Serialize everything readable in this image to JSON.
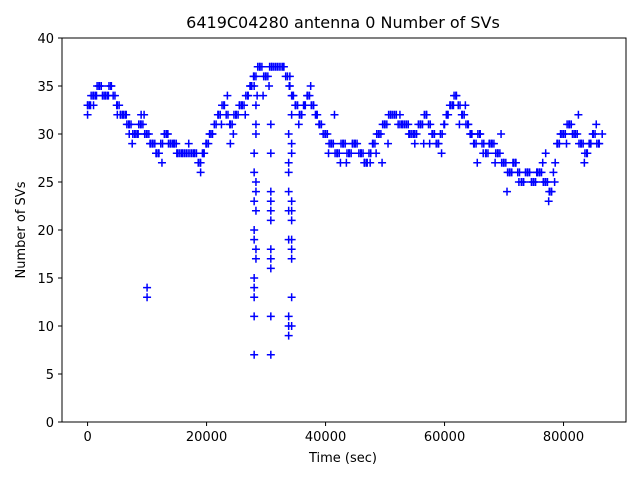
{
  "chart_data": {
    "type": "scatter",
    "title": "6419C04280 antenna 0 Number of SVs",
    "xlabel": "Time (sec)",
    "ylabel": "Number of SVs",
    "xlim": [
      -4300,
      90500
    ],
    "ylim": [
      0,
      40
    ],
    "xticks": [
      0,
      20000,
      40000,
      60000,
      80000
    ],
    "yticks": [
      0,
      5,
      10,
      15,
      20,
      25,
      30,
      35,
      40
    ],
    "marker": "+",
    "color": "#0000ff",
    "grid": false,
    "segments": [
      [
        0,
        33
      ],
      [
        1000,
        34
      ],
      [
        2000,
        35
      ],
      [
        3000,
        34
      ],
      [
        4000,
        35
      ],
      [
        5000,
        33
      ],
      [
        6000,
        32
      ],
      [
        7000,
        31
      ],
      [
        8000,
        30
      ],
      [
        9000,
        31
      ],
      [
        10000,
        30
      ],
      [
        11000,
        29
      ],
      [
        12000,
        28
      ],
      [
        13000,
        30
      ],
      [
        14000,
        29
      ],
      [
        16000,
        28
      ],
      [
        18000,
        28
      ],
      [
        19000,
        27
      ],
      [
        20000,
        29
      ],
      [
        21000,
        30
      ],
      [
        22000,
        32
      ],
      [
        23000,
        33
      ],
      [
        24000,
        31
      ],
      [
        25000,
        32
      ],
      [
        26000,
        33
      ],
      [
        27000,
        34
      ],
      [
        28000,
        36
      ],
      [
        29000,
        37
      ],
      [
        30000,
        36
      ],
      [
        31000,
        37
      ],
      [
        33000,
        37
      ],
      [
        34000,
        35
      ],
      [
        35000,
        33
      ],
      [
        36000,
        32
      ],
      [
        37000,
        34
      ],
      [
        38000,
        33
      ],
      [
        39000,
        31
      ],
      [
        40000,
        30
      ],
      [
        41000,
        29
      ],
      [
        42000,
        28
      ],
      [
        43000,
        29
      ],
      [
        44000,
        28
      ],
      [
        45000,
        29
      ],
      [
        46000,
        28
      ],
      [
        47000,
        27
      ],
      [
        48000,
        29
      ],
      [
        49000,
        30
      ],
      [
        50000,
        31
      ],
      [
        51000,
        32
      ],
      [
        53000,
        31
      ],
      [
        55000,
        30
      ],
      [
        56000,
        31
      ],
      [
        57000,
        32
      ],
      [
        58000,
        30
      ],
      [
        59000,
        29
      ],
      [
        60000,
        31
      ],
      [
        61000,
        33
      ],
      [
        62000,
        34
      ],
      [
        63000,
        32
      ],
      [
        64000,
        31
      ],
      [
        65000,
        29
      ],
      [
        66000,
        30
      ],
      [
        67000,
        28
      ],
      [
        68000,
        29
      ],
      [
        69000,
        28
      ],
      [
        70000,
        27
      ],
      [
        71000,
        26
      ],
      [
        72000,
        27
      ],
      [
        73000,
        25
      ],
      [
        74000,
        26
      ],
      [
        75000,
        25
      ],
      [
        76000,
        26
      ],
      [
        77000,
        25
      ],
      [
        78000,
        24
      ],
      [
        79000,
        29
      ],
      [
        80000,
        30
      ],
      [
        81000,
        31
      ],
      [
        82000,
        30
      ],
      [
        83000,
        29
      ],
      [
        84000,
        28
      ],
      [
        85000,
        30
      ],
      [
        86000,
        29
      ]
    ],
    "spread": [
      [
        0,
        32
      ],
      [
        0,
        33
      ],
      [
        500,
        33
      ],
      [
        1000,
        33
      ],
      [
        1500,
        34
      ],
      [
        2500,
        34
      ],
      [
        3500,
        34
      ],
      [
        5000,
        32
      ],
      [
        5500,
        32
      ],
      [
        6500,
        32
      ],
      [
        7000,
        30
      ],
      [
        7500,
        29
      ],
      [
        8500,
        30
      ],
      [
        9000,
        32
      ],
      [
        9500,
        32
      ],
      [
        10500,
        29
      ],
      [
        11500,
        28
      ],
      [
        12500,
        27
      ],
      [
        13500,
        30
      ],
      [
        14500,
        29
      ],
      [
        15000,
        28
      ],
      [
        17000,
        29
      ],
      [
        19000,
        26
      ],
      [
        19500,
        28
      ],
      [
        20500,
        30
      ],
      [
        22500,
        31
      ],
      [
        23500,
        34
      ],
      [
        24000,
        29
      ],
      [
        24500,
        30
      ],
      [
        25500,
        33
      ],
      [
        26500,
        32
      ],
      [
        27500,
        35
      ],
      [
        28000,
        35
      ],
      [
        28500,
        34
      ],
      [
        29500,
        34
      ],
      [
        30500,
        35
      ],
      [
        34000,
        36
      ],
      [
        34500,
        34
      ],
      [
        35500,
        31
      ],
      [
        36500,
        33
      ],
      [
        37500,
        35
      ],
      [
        38500,
        32
      ],
      [
        40500,
        28
      ],
      [
        41500,
        32
      ],
      [
        42500,
        27
      ],
      [
        43500,
        27
      ],
      [
        44500,
        29
      ],
      [
        46500,
        27
      ],
      [
        47500,
        27
      ],
      [
        48500,
        28
      ],
      [
        49500,
        27
      ],
      [
        50500,
        29
      ],
      [
        52500,
        32
      ],
      [
        54000,
        30
      ],
      [
        55000,
        29
      ],
      [
        56500,
        29
      ],
      [
        57500,
        29
      ],
      [
        59500,
        28
      ],
      [
        60500,
        32
      ],
      [
        61500,
        33
      ],
      [
        62500,
        31
      ],
      [
        63500,
        33
      ],
      [
        64500,
        30
      ],
      [
        65500,
        27
      ],
      [
        66500,
        28
      ],
      [
        67500,
        29
      ],
      [
        68500,
        27
      ],
      [
        69500,
        30
      ],
      [
        70500,
        24
      ],
      [
        71500,
        27
      ],
      [
        72500,
        25
      ],
      [
        75500,
        26
      ],
      [
        76500,
        27
      ],
      [
        77000,
        28
      ],
      [
        77500,
        23
      ],
      [
        78500,
        25
      ],
      [
        79500,
        30
      ],
      [
        80500,
        29
      ],
      [
        81500,
        30
      ],
      [
        82500,
        32
      ],
      [
        83500,
        27
      ],
      [
        84500,
        29
      ],
      [
        85500,
        31
      ],
      [
        86500,
        30
      ]
    ],
    "outliers": [
      [
        10000,
        14
      ],
      [
        10000,
        13
      ],
      [
        28000,
        28
      ],
      [
        28000,
        26
      ],
      [
        28000,
        23
      ],
      [
        28000,
        20
      ],
      [
        28000,
        19
      ],
      [
        28000,
        15
      ],
      [
        28000,
        14
      ],
      [
        28000,
        13
      ],
      [
        28000,
        11
      ],
      [
        28000,
        7
      ],
      [
        28300,
        31
      ],
      [
        28300,
        25
      ],
      [
        28300,
        24
      ],
      [
        28300,
        22
      ],
      [
        28300,
        18
      ],
      [
        28300,
        17
      ],
      [
        28300,
        33
      ],
      [
        28300,
        30
      ],
      [
        30800,
        31
      ],
      [
        30800,
        28
      ],
      [
        30800,
        24
      ],
      [
        30800,
        23
      ],
      [
        30800,
        22
      ],
      [
        30800,
        21
      ],
      [
        30800,
        18
      ],
      [
        30800,
        17
      ],
      [
        30800,
        16
      ],
      [
        30800,
        11
      ],
      [
        30800,
        7
      ],
      [
        33800,
        30
      ],
      [
        33800,
        27
      ],
      [
        33800,
        26
      ],
      [
        33800,
        24
      ],
      [
        33800,
        22
      ],
      [
        33800,
        19
      ],
      [
        33800,
        11
      ],
      [
        33800,
        10
      ],
      [
        33800,
        9
      ],
      [
        34300,
        28
      ],
      [
        34300,
        23
      ],
      [
        34300,
        22
      ],
      [
        34300,
        21
      ],
      [
        34300,
        19
      ],
      [
        34300,
        18
      ],
      [
        34300,
        17
      ],
      [
        34300,
        13
      ],
      [
        34300,
        10
      ],
      [
        34300,
        32
      ],
      [
        34300,
        29
      ]
    ]
  }
}
